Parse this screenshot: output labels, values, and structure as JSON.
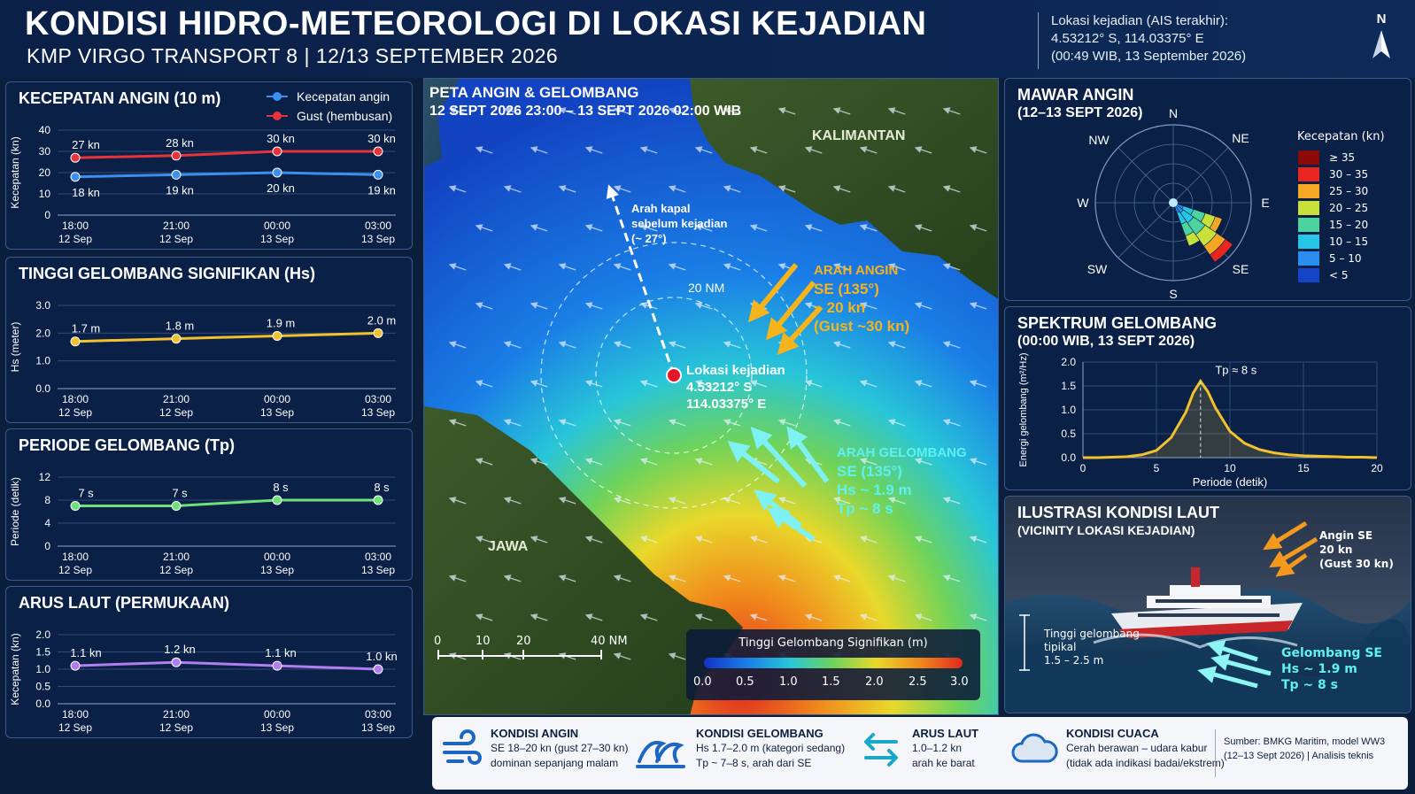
{
  "header": {
    "title": "KONDISI HIDRO-METEOROLOGI DI LOKASI KEJADIAN",
    "subtitle": "KMP VIRGO TRANSPORT 8  |  12/13 SEPTEMBER 2026",
    "location_label": "Lokasi kejadian (AIS terakhir):",
    "location_coords": "4.53212° S, 114.03375° E",
    "location_time": "(00:49 WIB, 13 September 2026)",
    "north_label": "N"
  },
  "wind_panel": {
    "title": "KECEPATAN ANGIN (10 m)",
    "legend": [
      "Kecepatan angin",
      "Gust (hembusan)"
    ]
  },
  "wave_panel": {
    "title": "TINGGI GELOMBANG SIGNIFIKAN (Hs)"
  },
  "period_panel": {
    "title": "PERIODE GELOMBANG (Tp)"
  },
  "current_panel": {
    "title": "ARUS LAUT (PERMUKAAN)"
  },
  "map": {
    "title": "PETA ANGIN & GELOMBANG",
    "subtitle": "12 SEPT 2026 23:00 – 13 SEPT 2026 02:00 WIB",
    "label_kalimantan": "KALIMANTAN",
    "label_jawa": "JAWA",
    "ship_dir": [
      "Arah kapal",
      "sebelum kejadian",
      "(~ 27°)"
    ],
    "ring_label": "20 NM",
    "incident": [
      "Lokasi kejadian",
      "4.53212° S",
      "114.03375° E"
    ],
    "wind_dir": [
      "ARAH ANGIN",
      "SE (135°)",
      "~ 20 kn",
      "(Gust ~30 kn)"
    ],
    "wave_dir": [
      "ARAH GELOMBANG",
      "SE (135°)",
      "Hs ~ 1.9 m",
      "Tp ~ 8 s"
    ],
    "scale_ticks": [
      "0",
      "10",
      "20",
      "40 NM"
    ],
    "colorbar_title": "Tinggi Gelombang Signifikan (m)",
    "colorbar_ticks": [
      "0.0",
      "0.5",
      "1.0",
      "1.5",
      "2.0",
      "2.5",
      "3.0"
    ]
  },
  "rose_panel": {
    "title": "MAWAR ANGIN",
    "subtitle": "(12–13 SEPT 2026)",
    "dirs": [
      "N",
      "NE",
      "E",
      "SE",
      "S",
      "SW",
      "W",
      "NW"
    ],
    "legend_title": "Kecepatan (kn)",
    "legend": [
      {
        "label": "≥ 35",
        "color": "#8b0a0a"
      },
      {
        "label": "30 – 35",
        "color": "#e8261f"
      },
      {
        "label": "25 – 30",
        "color": "#f5a623"
      },
      {
        "label": "20 – 25",
        "color": "#c8e03a"
      },
      {
        "label": "15 – 20",
        "color": "#4cd3a0"
      },
      {
        "label": "10 – 15",
        "color": "#26c6e6"
      },
      {
        "label": "5 – 10",
        "color": "#2a8df0"
      },
      {
        "label": "< 5",
        "color": "#1444c8"
      }
    ]
  },
  "spectrum_panel": {
    "title": "SPEKTRUM GELOMBANG",
    "subtitle": "(00:00 WIB, 13 SEPT 2026)"
  },
  "illus_panel": {
    "title": "ILUSTRASI KONDISI LAUT",
    "subtitle": "(VICINITY LOKASI KEJADIAN)",
    "wind": [
      "Angin SE",
      "20 kn",
      "(Gust 30 kn)"
    ],
    "height": [
      "Tinggi gelombang",
      "tipikal",
      "1.5 – 2.5 m"
    ],
    "wave": [
      "Gelombang SE",
      "Hs ~ 1.9 m",
      "Tp ~ 8 s"
    ]
  },
  "bottom": {
    "wind": {
      "title": "KONDISI ANGIN",
      "l1": "SE 18–20 kn (gust 27–30 kn)",
      "l2": "dominan sepanjang malam"
    },
    "wave": {
      "title": "KONDISI GELOMBANG",
      "l1": "Hs 1.7–2.0 m (kategori sedang)",
      "l2": "Tp ~ 7–8 s, arah dari SE"
    },
    "current": {
      "title": "ARUS LAUT",
      "l1": "1.0–1.2 kn",
      "l2": "arah ke barat"
    },
    "weather": {
      "title": "KONDISI CUACA",
      "l1": "Cerah berawan – udara kabur",
      "l2": "(tidak ada indikasi badai/ekstrem)"
    },
    "source": {
      "l1": "Sumber: BMKG Maritim, model WW3",
      "l2": "(12–13 Sept 2026) | Analisis teknis"
    }
  },
  "chart_data": [
    {
      "type": "line",
      "title": "KECEPATAN ANGIN (10 m)",
      "ylabel": "Kecepatan (kn)",
      "categories": [
        "18:00\n12 Sep",
        "21:00\n12 Sep",
        "00:00\n13 Sep",
        "03:00\n13 Sep"
      ],
      "ylim": [
        0,
        40
      ],
      "yticks": [
        0,
        10,
        20,
        30,
        40
      ],
      "series": [
        {
          "name": "Kecepatan angin",
          "values": [
            18,
            19,
            20,
            19
          ],
          "labels": [
            "18 kn",
            "19 kn",
            "20 kn",
            "19 kn"
          ],
          "color": "#3b8ff0"
        },
        {
          "name": "Gust (hembusan)",
          "values": [
            27,
            28,
            30,
            30
          ],
          "labels": [
            "27 kn",
            "28 kn",
            "30 kn",
            "30 kn"
          ],
          "color": "#e8333a"
        }
      ]
    },
    {
      "type": "line",
      "title": "TINGGI GELOMBANG SIGNIFIKAN (Hs)",
      "ylabel": "Hs (meter)",
      "categories": [
        "18:00\n12 Sep",
        "21:00\n12 Sep",
        "00:00\n13 Sep",
        "03:00\n13 Sep"
      ],
      "ylim": [
        0,
        3
      ],
      "yticks": [
        "0.0",
        "1.0",
        "2.0",
        "3.0"
      ],
      "series": [
        {
          "values": [
            1.7,
            1.8,
            1.9,
            2.0
          ],
          "labels": [
            "1.7 m",
            "1.8 m",
            "1.9 m",
            "2.0 m"
          ],
          "color": "#f2c12e"
        }
      ]
    },
    {
      "type": "line",
      "title": "PERIODE GELOMBANG (Tp)",
      "ylabel": "Periode (detik)",
      "categories": [
        "18:00\n12 Sep",
        "21:00\n12 Sep",
        "00:00\n13 Sep",
        "03:00\n13 Sep"
      ],
      "ylim": [
        0,
        12
      ],
      "yticks": [
        0,
        4,
        8,
        12
      ],
      "series": [
        {
          "values": [
            7,
            7,
            8,
            8
          ],
          "labels": [
            "7 s",
            "7 s",
            "8 s",
            "8 s"
          ],
          "color": "#6fe07a"
        }
      ]
    },
    {
      "type": "line",
      "title": "ARUS LAUT (PERMUKAAN)",
      "ylabel": "Kecepatan (kn)",
      "categories": [
        "18:00\n12 Sep",
        "21:00\n12 Sep",
        "00:00\n13 Sep",
        "03:00\n13 Sep"
      ],
      "ylim": [
        0,
        2
      ],
      "yticks": [
        "0.0",
        "0.5",
        "1.0",
        "1.5",
        "2.0"
      ],
      "series": [
        {
          "values": [
            1.1,
            1.2,
            1.1,
            1.0
          ],
          "labels": [
            "1.1 kn",
            "1.2 kn",
            "1.1 kn",
            "1.0 kn"
          ],
          "color": "#b07ef0"
        }
      ]
    },
    {
      "type": "line",
      "title": "SPEKTRUM GELOMBANG",
      "xlabel": "Periode (detik)",
      "ylabel": "Energi gelombang (m²/Hz)",
      "xlim": [
        0,
        20
      ],
      "ylim": [
        0,
        2
      ],
      "xticks": [
        0,
        5,
        10,
        15,
        20
      ],
      "yticks": [
        "0.0",
        "0.5",
        "1.0",
        "1.5",
        "2.0"
      ],
      "annotation": "Tp ≈ 8 s",
      "peak": {
        "x": 8,
        "y": 1.6
      },
      "x": [
        0,
        1,
        2,
        3,
        4,
        5,
        6,
        7,
        7.5,
        8,
        8.5,
        9,
        10,
        11,
        12,
        13,
        14,
        15,
        16,
        17,
        18,
        19,
        20
      ],
      "y": [
        0.0,
        0.0,
        0.01,
        0.02,
        0.06,
        0.15,
        0.42,
        0.95,
        1.35,
        1.6,
        1.38,
        1.05,
        0.55,
        0.3,
        0.17,
        0.1,
        0.06,
        0.04,
        0.03,
        0.02,
        0.01,
        0.01,
        0.0
      ],
      "color": "#f2c12e"
    }
  ]
}
